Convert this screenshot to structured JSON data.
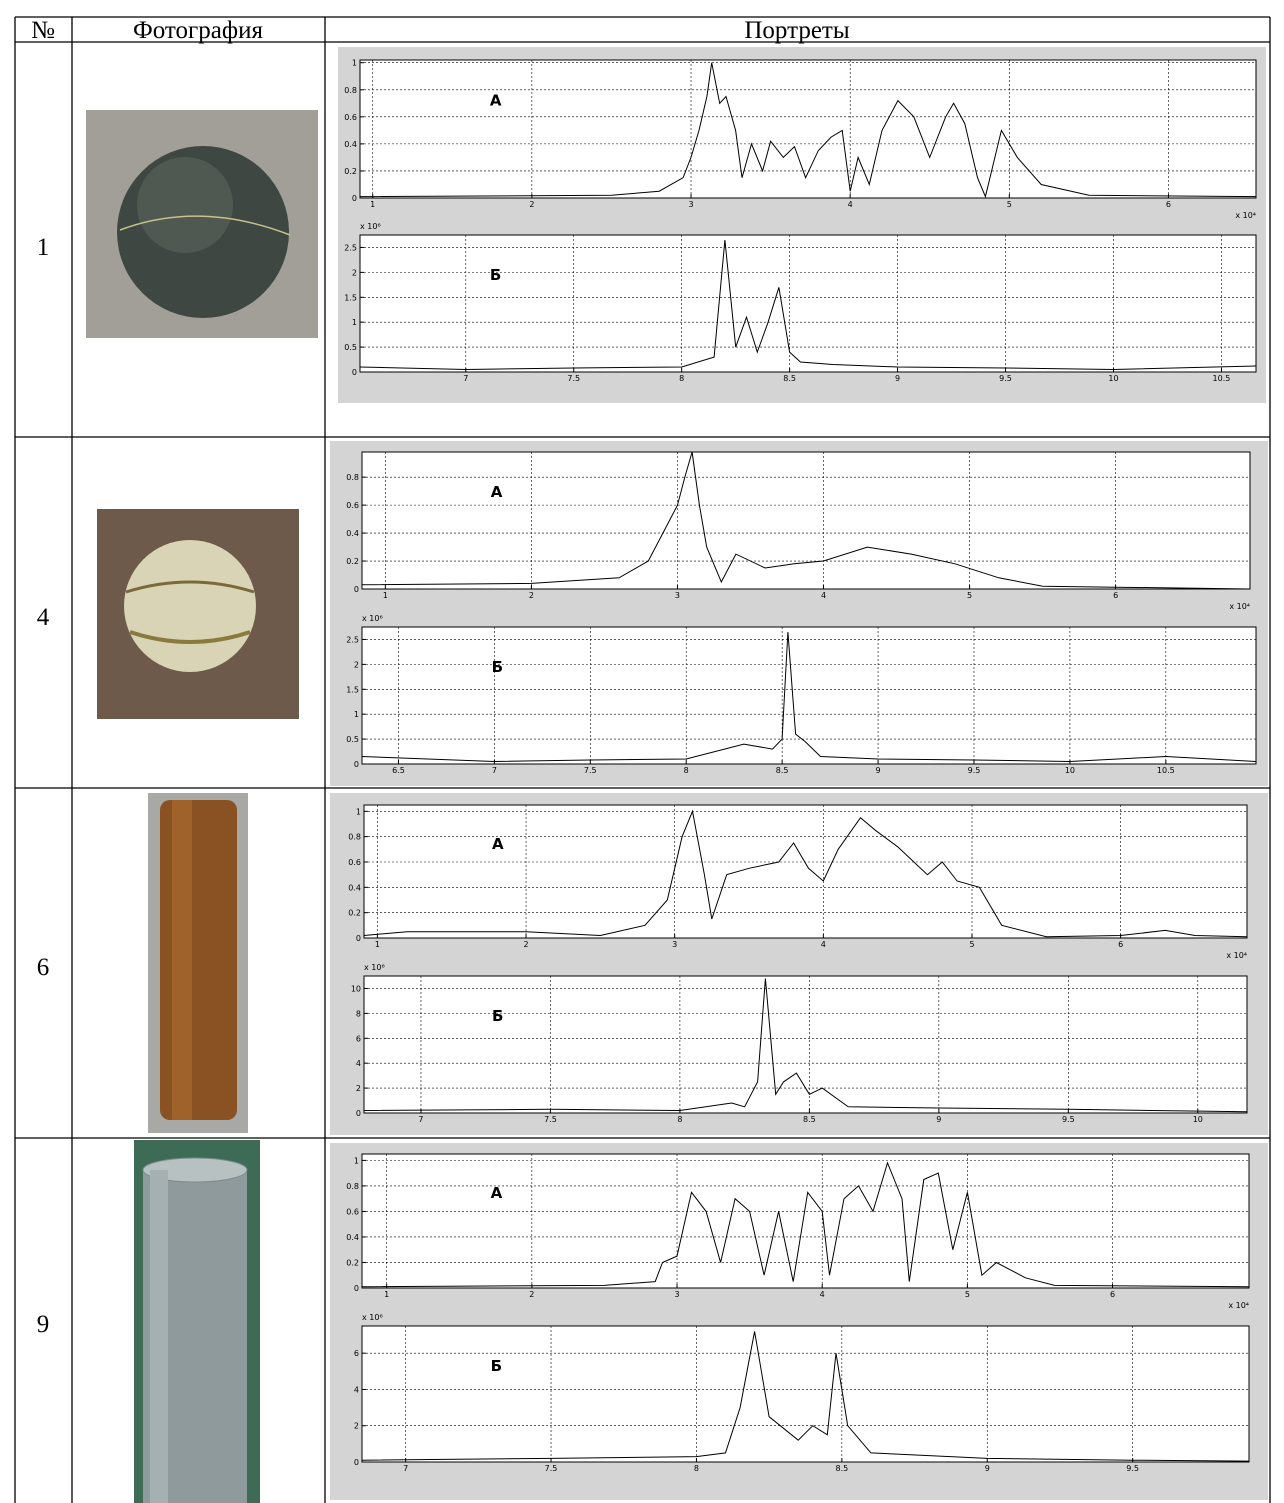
{
  "table": {
    "header": [
      "№",
      "Фотография",
      "Портреты"
    ],
    "rows": [
      {
        "number": "1",
        "charts": [
          {
            "type": "line",
            "label": "А",
            "grid": true,
            "xlim": [
              0.92,
              6.55
            ],
            "ylim": [
              0,
              1.02
            ],
            "xticks": [
              1,
              2,
              3,
              4,
              5,
              6
            ],
            "yticks": [
              0,
              0.2,
              0.4,
              0.6,
              0.8,
              1
            ],
            "x_multiplier": "x 10⁴",
            "x": [
              0.92,
              2.5,
              2.8,
              2.95,
              3.0,
              3.05,
              3.1,
              3.13,
              3.18,
              3.22,
              3.28,
              3.32,
              3.38,
              3.45,
              3.5,
              3.58,
              3.65,
              3.72,
              3.8,
              3.88,
              3.95,
              4.0,
              4.05,
              4.12,
              4.2,
              4.3,
              4.4,
              4.5,
              4.6,
              4.65,
              4.72,
              4.8,
              4.85,
              4.95,
              5.05,
              5.2,
              5.5,
              6.55
            ],
            "values": [
              0.01,
              0.02,
              0.05,
              0.15,
              0.3,
              0.5,
              0.75,
              1.0,
              0.7,
              0.75,
              0.5,
              0.15,
              0.4,
              0.2,
              0.42,
              0.3,
              0.38,
              0.15,
              0.35,
              0.45,
              0.5,
              0.05,
              0.3,
              0.1,
              0.5,
              0.72,
              0.6,
              0.3,
              0.6,
              0.7,
              0.55,
              0.15,
              0.01,
              0.5,
              0.3,
              0.1,
              0.02,
              0.01
            ]
          },
          {
            "type": "line",
            "label": "Б",
            "grid": true,
            "xlim": [
              6.51,
              10.66
            ],
            "ylim": [
              0,
              2.75
            ],
            "xticks": [
              7,
              7.5,
              8,
              8.5,
              9,
              9.5,
              10,
              10.5
            ],
            "yticks": [
              0,
              0.5,
              1,
              1.5,
              2,
              2.5
            ],
            "y_multiplier": "x 10⁶",
            "x": [
              6.51,
              7.0,
              7.5,
              8.0,
              8.15,
              8.2,
              8.25,
              8.3,
              8.35,
              8.4,
              8.45,
              8.5,
              8.55,
              8.7,
              9.0,
              9.5,
              10.0,
              10.66
            ],
            "values": [
              0.1,
              0.05,
              0.08,
              0.1,
              0.3,
              2.65,
              0.5,
              1.1,
              0.4,
              1.0,
              1.7,
              0.4,
              0.2,
              0.15,
              0.1,
              0.08,
              0.05,
              0.12
            ]
          }
        ]
      },
      {
        "number": "4",
        "charts": [
          {
            "type": "line",
            "label": "А",
            "grid": true,
            "xlim": [
              0.84,
              6.92
            ],
            "ylim": [
              0,
              0.98
            ],
            "xticks": [
              1,
              2,
              3,
              4,
              5,
              6
            ],
            "yticks": [
              0,
              0.2,
              0.4,
              0.6,
              0.8
            ],
            "x_multiplier": "x 10⁴",
            "x": [
              0.84,
              2.0,
              2.6,
              2.8,
              2.9,
              3.0,
              3.05,
              3.1,
              3.15,
              3.2,
              3.3,
              3.4,
              3.6,
              3.8,
              4.0,
              4.3,
              4.6,
              4.9,
              5.2,
              5.5,
              6.92
            ],
            "values": [
              0.03,
              0.04,
              0.08,
              0.2,
              0.4,
              0.6,
              0.8,
              0.98,
              0.6,
              0.3,
              0.05,
              0.25,
              0.15,
              0.18,
              0.2,
              0.3,
              0.25,
              0.18,
              0.08,
              0.02,
              0.0
            ]
          },
          {
            "type": "line",
            "label": "Б",
            "grid": true,
            "xlim": [
              6.31,
              10.97
            ],
            "ylim": [
              0,
              2.75
            ],
            "xticks": [
              6.5,
              7,
              7.5,
              8,
              8.5,
              9,
              9.5,
              10,
              10.5
            ],
            "yticks": [
              0,
              0.5,
              1,
              1.5,
              2,
              2.5
            ],
            "y_multiplier": "x 10⁶",
            "x": [
              6.31,
              7.0,
              7.5,
              8.0,
              8.3,
              8.45,
              8.5,
              8.53,
              8.57,
              8.62,
              8.7,
              9.0,
              9.5,
              10.0,
              10.5,
              10.97
            ],
            "values": [
              0.15,
              0.05,
              0.08,
              0.1,
              0.4,
              0.3,
              0.5,
              2.65,
              0.6,
              0.45,
              0.15,
              0.1,
              0.08,
              0.05,
              0.15,
              0.05
            ]
          }
        ]
      },
      {
        "number": "6",
        "charts": [
          {
            "type": "line",
            "label": "А",
            "grid": true,
            "xlim": [
              0.91,
              6.85
            ],
            "ylim": [
              0,
              1.05
            ],
            "xticks": [
              1,
              2,
              3,
              4,
              5,
              6
            ],
            "yticks": [
              0,
              0.2,
              0.4,
              0.6,
              0.8,
              1
            ],
            "x_multiplier": "x 10⁴",
            "x": [
              0.91,
              1.2,
              2.0,
              2.5,
              2.8,
              2.95,
              3.05,
              3.12,
              3.2,
              3.25,
              3.35,
              3.5,
              3.7,
              3.8,
              3.9,
              4.0,
              4.1,
              4.25,
              4.35,
              4.5,
              4.7,
              4.8,
              4.9,
              5.05,
              5.2,
              5.5,
              6.0,
              6.3,
              6.5,
              6.85
            ],
            "values": [
              0.02,
              0.05,
              0.05,
              0.02,
              0.1,
              0.3,
              0.8,
              1.0,
              0.5,
              0.15,
              0.5,
              0.55,
              0.6,
              0.75,
              0.55,
              0.45,
              0.7,
              0.95,
              0.85,
              0.72,
              0.5,
              0.6,
              0.45,
              0.4,
              0.1,
              0.01,
              0.02,
              0.06,
              0.02,
              0.01
            ]
          },
          {
            "type": "line",
            "label": "Б",
            "grid": true,
            "xlim": [
              6.78,
              10.19
            ],
            "ylim": [
              0,
              11
            ],
            "xticks": [
              7,
              7.5,
              8,
              8.5,
              9,
              9.5,
              10
            ],
            "yticks": [
              0,
              2,
              4,
              6,
              8,
              10
            ],
            "y_multiplier": "x 10⁶",
            "x": [
              6.78,
              7.5,
              8.0,
              8.2,
              8.25,
              8.3,
              8.33,
              8.37,
              8.4,
              8.45,
              8.5,
              8.55,
              8.65,
              9.0,
              9.5,
              10.19
            ],
            "values": [
              0.2,
              0.3,
              0.2,
              0.8,
              0.5,
              2.5,
              10.8,
              1.5,
              2.5,
              3.2,
              1.5,
              2.0,
              0.5,
              0.4,
              0.3,
              0.1
            ]
          }
        ]
      },
      {
        "number": "9",
        "charts": [
          {
            "type": "line",
            "label": "А",
            "grid": true,
            "xlim": [
              0.83,
              6.94
            ],
            "ylim": [
              0,
              1.05
            ],
            "xticks": [
              1,
              2,
              3,
              4,
              5,
              6
            ],
            "yticks": [
              0,
              0.2,
              0.4,
              0.6,
              0.8,
              1
            ],
            "x_multiplier": "x 10⁴",
            "x": [
              0.83,
              2.5,
              2.85,
              2.9,
              3.0,
              3.1,
              3.2,
              3.3,
              3.4,
              3.5,
              3.6,
              3.7,
              3.8,
              3.9,
              4.0,
              4.05,
              4.15,
              4.25,
              4.35,
              4.45,
              4.55,
              4.6,
              4.7,
              4.8,
              4.9,
              5.0,
              5.1,
              5.2,
              5.4,
              5.6,
              6.94
            ],
            "values": [
              0.01,
              0.02,
              0.05,
              0.2,
              0.25,
              0.75,
              0.6,
              0.2,
              0.7,
              0.6,
              0.1,
              0.6,
              0.05,
              0.75,
              0.6,
              0.1,
              0.7,
              0.8,
              0.6,
              0.98,
              0.7,
              0.05,
              0.85,
              0.9,
              0.3,
              0.75,
              0.1,
              0.2,
              0.08,
              0.02,
              0.01
            ]
          },
          {
            "type": "line",
            "label": "Б",
            "grid": true,
            "xlim": [
              6.85,
              9.9
            ],
            "ylim": [
              0,
              7.5
            ],
            "xticks": [
              7,
              7.5,
              8,
              8.5,
              9,
              9.5
            ],
            "yticks": [
              0,
              2,
              4,
              6
            ],
            "y_multiplier": "x 10⁶",
            "x": [
              6.85,
              7.5,
              8.0,
              8.1,
              8.15,
              8.2,
              8.25,
              8.35,
              8.4,
              8.45,
              8.48,
              8.52,
              8.6,
              9.0,
              9.5,
              9.9
            ],
            "values": [
              0.1,
              0.2,
              0.3,
              0.5,
              3.0,
              7.2,
              2.5,
              1.2,
              2.0,
              1.5,
              6.0,
              2.0,
              0.5,
              0.2,
              0.1,
              0.05
            ]
          }
        ]
      }
    ]
  }
}
